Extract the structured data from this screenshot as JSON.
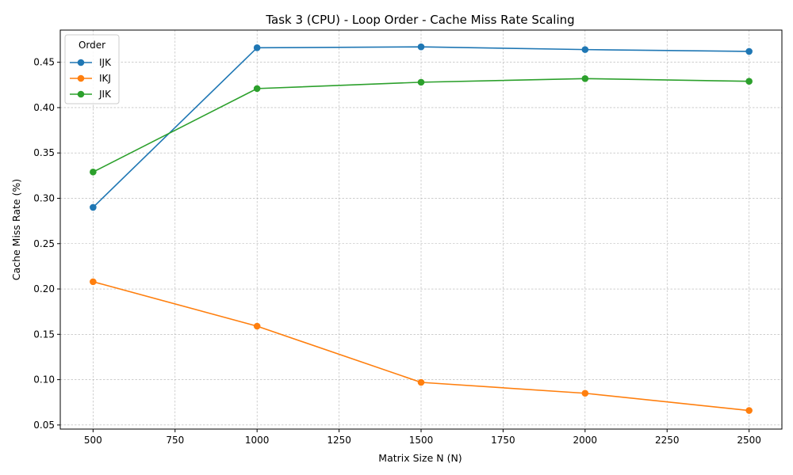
{
  "chart_data": {
    "type": "line",
    "title": "Task 3 (CPU) - Loop Order - Cache Miss Rate Scaling",
    "xlabel": "Matrix Size N (N)",
    "ylabel": "Cache Miss Rate (%)",
    "x": [
      500,
      1000,
      1500,
      2000,
      2500
    ],
    "xlim": [
      400,
      2600
    ],
    "ylim": [
      0.0455,
      0.4855
    ],
    "xticks": [
      500,
      750,
      1000,
      1250,
      1500,
      1750,
      2000,
      2250,
      2500
    ],
    "xtick_labels": [
      "500",
      "750",
      "1000",
      "1250",
      "1500",
      "1750",
      "2000",
      "2250",
      "2500"
    ],
    "yticks": [
      0.05,
      0.1,
      0.15,
      0.2,
      0.25,
      0.3,
      0.35,
      0.4,
      0.45
    ],
    "ytick_labels": [
      "0.05",
      "0.10",
      "0.15",
      "0.20",
      "0.25",
      "0.30",
      "0.35",
      "0.40",
      "0.45"
    ],
    "grid": true,
    "legend": {
      "title": "Order",
      "placement": "top-left"
    },
    "series": [
      {
        "name": "IJK",
        "color": "#1f77b4",
        "values": [
          0.29,
          0.466,
          0.467,
          0.464,
          0.462
        ]
      },
      {
        "name": "IKJ",
        "color": "#ff7f0e",
        "values": [
          0.208,
          0.159,
          0.097,
          0.085,
          0.066
        ]
      },
      {
        "name": "JIK",
        "color": "#2ca02c",
        "values": [
          0.329,
          0.421,
          0.428,
          0.432,
          0.429
        ]
      }
    ]
  }
}
